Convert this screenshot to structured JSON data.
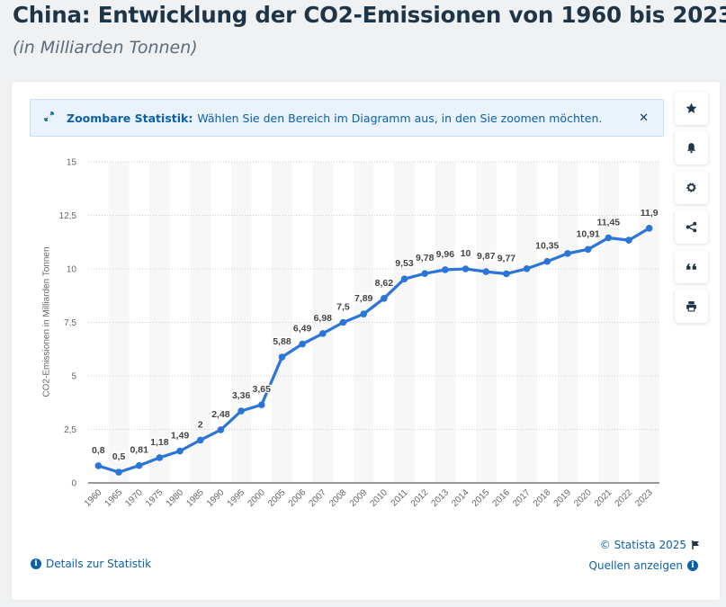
{
  "header": {
    "title": "China: Entwicklung der CO2-Emissionen von 1960 bis 2023",
    "subtitle": "(in Milliarden Tonnen)"
  },
  "banner": {
    "icon": "expand-arrows-icon",
    "title": "Zoombare Statistik:",
    "text": "Wählen Sie den Bereich im Diagramm aus, in den Sie zoomen möchten.",
    "close_icon": "close-icon"
  },
  "side_buttons": [
    {
      "name": "favorite",
      "icon": "star-icon"
    },
    {
      "name": "notification",
      "icon": "bell-icon"
    },
    {
      "name": "settings",
      "icon": "gear-icon"
    },
    {
      "name": "share",
      "icon": "share-icon"
    },
    {
      "name": "cite",
      "icon": "quote-icon"
    },
    {
      "name": "print",
      "icon": "print-icon"
    }
  ],
  "footer": {
    "copyright": "© Statista 2025",
    "details_label": "Details zur Statistik",
    "sources_label": "Quellen anzeigen"
  },
  "colors": {
    "line": "#2b74d8",
    "accent": "#0b60a8",
    "title": "#1e3447"
  },
  "chart_data": {
    "type": "line",
    "title": "China: Entwicklung der CO2-Emissionen von 1960 bis 2023",
    "subtitle": "(in Milliarden Tonnen)",
    "xlabel": "",
    "ylabel": "CO2-Emissionen in Milliarden Tonnen",
    "ylim": [
      0,
      15
    ],
    "yticks": [
      0,
      2.5,
      5,
      7.5,
      10,
      12.5,
      15
    ],
    "ytick_labels": [
      "0",
      "2,5",
      "5",
      "7,5",
      "10",
      "12,5",
      "15"
    ],
    "grid": true,
    "legend": "none",
    "categories": [
      "1960",
      "1965",
      "1970",
      "1975",
      "1980",
      "1985",
      "1990",
      "1995",
      "2000",
      "2005",
      "2006",
      "2007",
      "2008",
      "2009",
      "2010",
      "2011",
      "2012",
      "2013",
      "2014",
      "2015",
      "2016",
      "2017",
      "2018",
      "2019",
      "2020",
      "2021",
      "2022",
      "2023"
    ],
    "series": [
      {
        "name": "CO2-Emissionen",
        "values": [
          0.8,
          0.5,
          0.81,
          1.18,
          1.49,
          2,
          2.48,
          3.36,
          3.65,
          5.88,
          6.49,
          6.98,
          7.5,
          7.89,
          8.62,
          9.53,
          9.78,
          9.96,
          10,
          9.87,
          9.77,
          10.01,
          10.35,
          10.72,
          10.91,
          11.45,
          11.34,
          11.9
        ],
        "labels": [
          "0,8",
          "0,5",
          "0,81",
          "1,18",
          "1,49",
          "2",
          "2,48",
          "3,36",
          "3,65",
          "5,88",
          "6,49",
          "6,98",
          "7,5",
          "7,89",
          "8,62",
          "9,53",
          "9,78",
          "9,96",
          "10",
          "9,87",
          "9,77",
          "",
          "10,35",
          "",
          "10,91",
          "11,45",
          "",
          "11,9"
        ]
      }
    ]
  }
}
